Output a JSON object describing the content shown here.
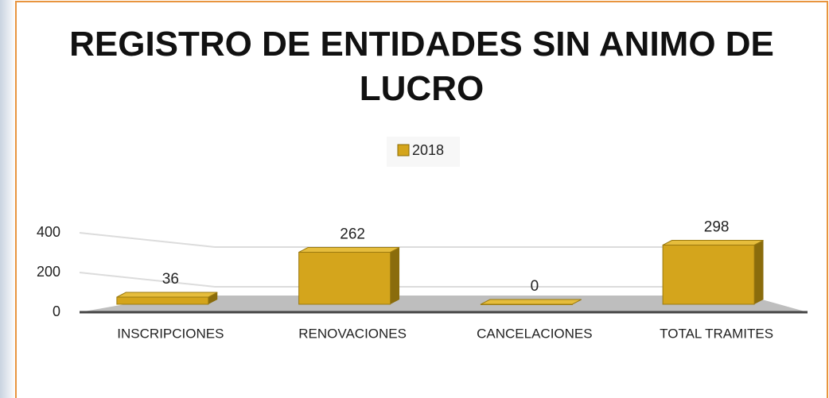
{
  "chart_data": {
    "type": "bar3d",
    "title": "REGISTRO DE ENTIDADES SIN ANIMO DE LUCRO",
    "categories": [
      "INSCRIPCIONES",
      "RENOVACIONES",
      "CANCELACIONES",
      "TOTAL TRAMITES"
    ],
    "series": [
      {
        "name": "2018",
        "color": "#d4a51c",
        "values": [
          36,
          262,
          0,
          298
        ]
      }
    ],
    "ylim": [
      0,
      400
    ],
    "yticks": [
      0,
      200,
      400
    ],
    "grid": true,
    "legend": "top"
  }
}
